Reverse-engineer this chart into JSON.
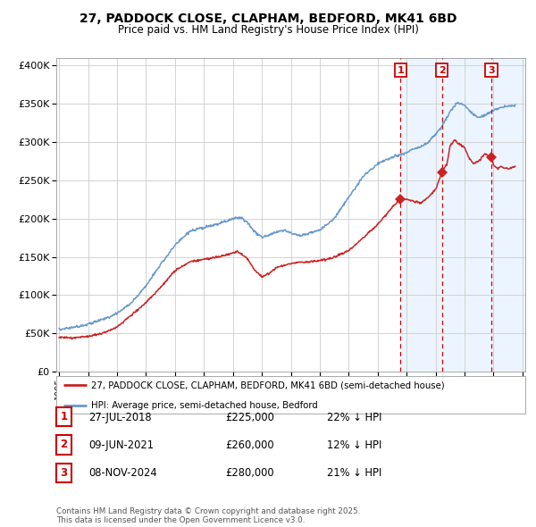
{
  "title": "27, PADDOCK CLOSE, CLAPHAM, BEDFORD, MK41 6BD",
  "subtitle": "Price paid vs. HM Land Registry's House Price Index (HPI)",
  "legend_line1": "27, PADDOCK CLOSE, CLAPHAM, BEDFORD, MK41 6BD (semi-detached house)",
  "legend_line2": "HPI: Average price, semi-detached house, Bedford",
  "footer": "Contains HM Land Registry data © Crown copyright and database right 2025.\nThis data is licensed under the Open Government Licence v3.0.",
  "hpi_color": "#6699cc",
  "price_color": "#cc2222",
  "background_color": "#ffffff",
  "grid_color": "#cccccc",
  "shade_color": "#ddeeff",
  "sale_events": [
    {
      "label": "1",
      "date_x": 2018.57,
      "price": 225000
    },
    {
      "label": "2",
      "date_x": 2021.44,
      "price": 260000
    },
    {
      "label": "3",
      "date_x": 2024.86,
      "price": 280000
    }
  ],
  "sale_dates_text": [
    "27-JUL-2018",
    "09-JUN-2021",
    "08-NOV-2024"
  ],
  "sale_prices_text": [
    "£225,000",
    "£260,000",
    "£280,000"
  ],
  "sale_pcts_text": [
    "22% ↓ HPI",
    "12% ↓ HPI",
    "21% ↓ HPI"
  ],
  "ylim": [
    0,
    410000
  ],
  "xlim_start": 1994.8,
  "xlim_end": 2027.2
}
